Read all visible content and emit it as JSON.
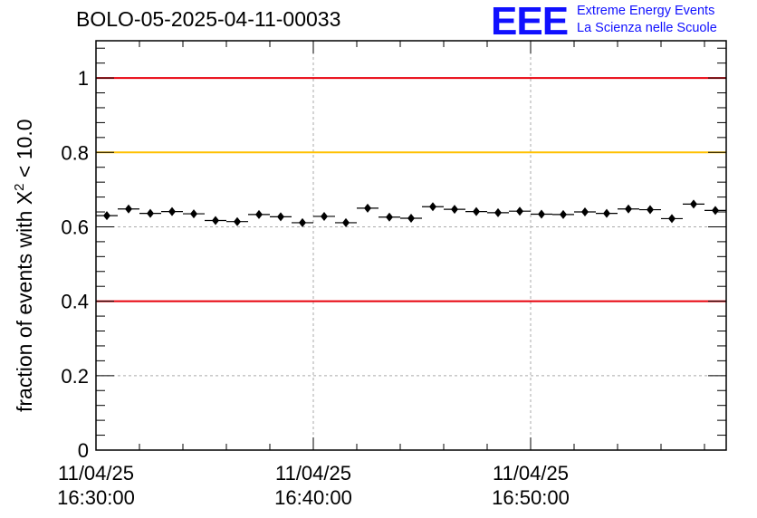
{
  "title": "BOLO-05-2025-04-11-00033",
  "logo": {
    "mark": "EEE",
    "line1": "Extreme Energy Events",
    "line2": "La Scienza nelle Scuole"
  },
  "chart_data": {
    "type": "scatter",
    "title": "BOLO-05-2025-04-11-00033",
    "ylabel_prefix": "fraction of events with X",
    "ylabel_sup": "2",
    "ylabel_suffix": " < 10.0",
    "xlabel": "",
    "x_unit": "minutes after 11/04/25 16:30:00",
    "xlim": [
      0,
      29
    ],
    "ylim": [
      0,
      1.1
    ],
    "yticks": [
      {
        "value": 0,
        "label": "0"
      },
      {
        "value": 0.2,
        "label": "0.2"
      },
      {
        "value": 0.4,
        "label": "0.4"
      },
      {
        "value": 0.6,
        "label": "0.6"
      },
      {
        "value": 0.8,
        "label": "0.8"
      },
      {
        "value": 1.0,
        "label": "1"
      }
    ],
    "xticks": [
      {
        "value": 0,
        "label_date": "11/04/25",
        "label_time": "16:30:00"
      },
      {
        "value": 10,
        "label_date": "11/04/25",
        "label_time": "16:40:00"
      },
      {
        "value": 20,
        "label_date": "11/04/25",
        "label_time": "16:50:00"
      }
    ],
    "grid": true,
    "reference_lines": [
      {
        "y": 1.0,
        "color": "#e8000b"
      },
      {
        "y": 0.8,
        "color": "#ffc000"
      },
      {
        "y": 0.4,
        "color": "#e8000b"
      }
    ],
    "series": [
      {
        "marker_color": "#000000",
        "x_halfwidth": 0.5,
        "points": [
          [
            0.5,
            0.63
          ],
          [
            1.5,
            0.648
          ],
          [
            2.5,
            0.636
          ],
          [
            3.5,
            0.641
          ],
          [
            4.5,
            0.635
          ],
          [
            5.5,
            0.617
          ],
          [
            6.5,
            0.614
          ],
          [
            7.5,
            0.633
          ],
          [
            8.5,
            0.627
          ],
          [
            9.5,
            0.611
          ],
          [
            10.5,
            0.628
          ],
          [
            11.5,
            0.611
          ],
          [
            12.5,
            0.65
          ],
          [
            13.5,
            0.626
          ],
          [
            14.5,
            0.623
          ],
          [
            15.5,
            0.654
          ],
          [
            16.5,
            0.647
          ],
          [
            17.5,
            0.641
          ],
          [
            18.5,
            0.638
          ],
          [
            19.5,
            0.642
          ],
          [
            20.5,
            0.634
          ],
          [
            21.5,
            0.633
          ],
          [
            22.5,
            0.64
          ],
          [
            23.5,
            0.636
          ],
          [
            24.5,
            0.648
          ],
          [
            25.5,
            0.646
          ],
          [
            26.5,
            0.622
          ],
          [
            27.5,
            0.661
          ],
          [
            28.5,
            0.644
          ]
        ]
      }
    ]
  }
}
